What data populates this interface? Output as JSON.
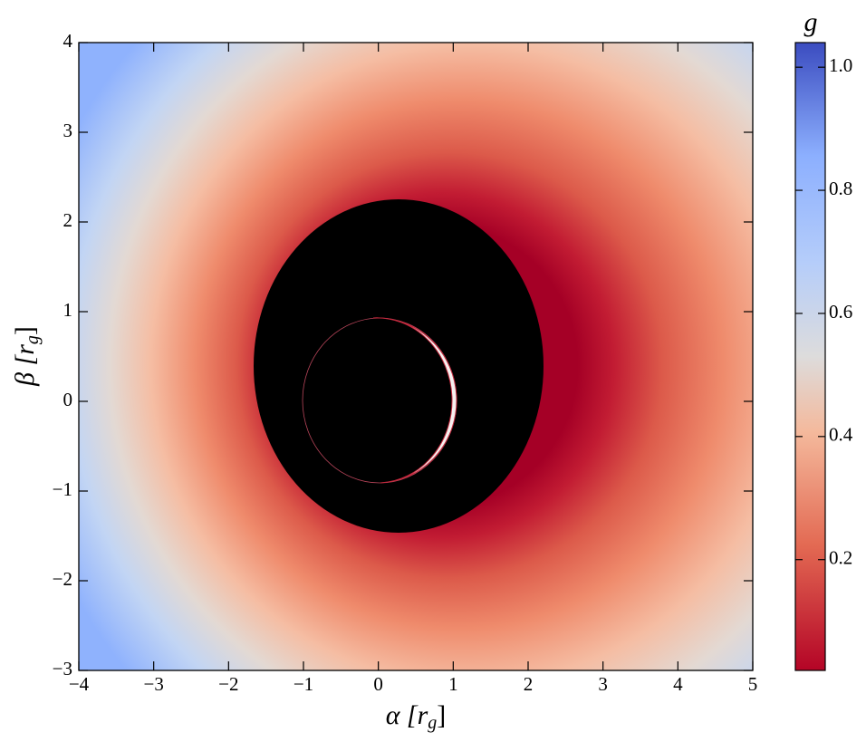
{
  "chart_data": {
    "type": "heatmap",
    "xlabel": [
      "α [r",
      "g",
      "]"
    ],
    "ylabel": [
      "β [r",
      "g",
      "]"
    ],
    "xlim": [
      -4,
      5
    ],
    "xticks": [
      {
        "value": -4,
        "label": "−4"
      },
      {
        "value": -3,
        "label": "−3"
      },
      {
        "value": -2,
        "label": "−2"
      },
      {
        "value": -1,
        "label": "−1"
      },
      0,
      1,
      2,
      3,
      4,
      5
    ],
    "ylim": [
      -3,
      4
    ],
    "yticks": [
      {
        "value": -3,
        "label": "−3"
      },
      {
        "value": -2,
        "label": "−2"
      },
      {
        "value": -1,
        "label": "−1"
      },
      0,
      1,
      2,
      3,
      4
    ],
    "colorbar": {
      "label": "g",
      "lim": [
        0.02,
        1.04
      ],
      "ticks": [
        0.2,
        0.4,
        0.6,
        0.8,
        {
          "value": 1,
          "label": "1.0"
        }
      ]
    }
  }
}
